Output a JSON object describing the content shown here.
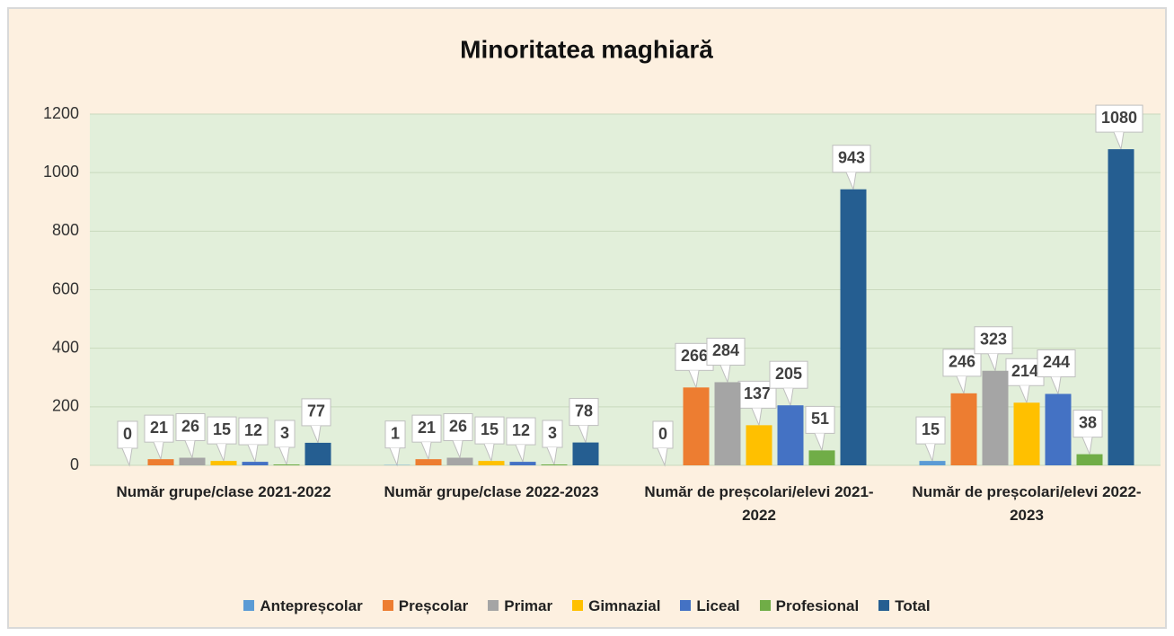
{
  "chart_data": {
    "type": "bar",
    "title": "Minoritatea maghiară",
    "categories": [
      "Număr grupe/clase 2021-2022",
      "Număr grupe/clase 2022-2023",
      "Număr de preșcolari/elevi 2021-2022",
      "Număr de preșcolari/elevi 2022-2023"
    ],
    "series": [
      {
        "name": "Antepreșcolar",
        "color": "#5b9bd5",
        "values": [
          0,
          1,
          0,
          15
        ]
      },
      {
        "name": "Preșcolar",
        "color": "#ed7d31",
        "values": [
          21,
          21,
          266,
          246
        ]
      },
      {
        "name": "Primar",
        "color": "#a5a5a5",
        "values": [
          26,
          26,
          284,
          323
        ]
      },
      {
        "name": "Gimnazial",
        "color": "#ffc000",
        "values": [
          15,
          15,
          137,
          214
        ]
      },
      {
        "name": "Liceal",
        "color": "#4472c4",
        "values": [
          12,
          12,
          205,
          244
        ]
      },
      {
        "name": "Profesional",
        "color": "#70ad47",
        "values": [
          3,
          3,
          51,
          38
        ]
      },
      {
        "name": "Total",
        "color": "#255e91",
        "values": [
          77,
          78,
          943,
          1080
        ]
      }
    ],
    "ylim": [
      0,
      1200
    ],
    "yticks": [
      0,
      200,
      400,
      600,
      800,
      1000,
      1200
    ],
    "grid": true,
    "legend": "bottom"
  }
}
